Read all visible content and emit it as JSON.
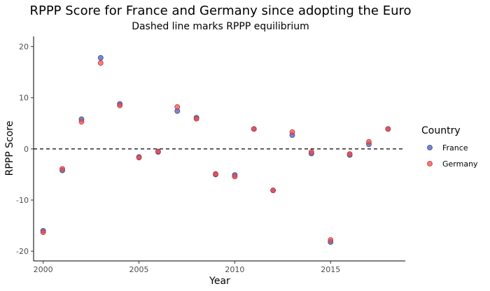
{
  "chart_data": {
    "type": "scatter",
    "title": "RPPP Score for France and Germany since adopting the Euro",
    "subtitle": "Dashed line marks RPPP equilibrium",
    "xlabel": "Year",
    "ylabel": "RPPP Score",
    "xlim": [
      1999.5,
      2018.9
    ],
    "ylim": [
      -21.9,
      22.0
    ],
    "x_ticks": [
      2000,
      2005,
      2010,
      2015
    ],
    "y_ticks": [
      -20,
      -10,
      0,
      10,
      20
    ],
    "reference_line": {
      "y": 0,
      "style": "dashed"
    },
    "grid": false,
    "legend": {
      "title": "Country",
      "position": "right"
    },
    "x": [
      2000,
      2001,
      2002,
      2003,
      2004,
      2005,
      2006,
      2007,
      2008,
      2009,
      2010,
      2011,
      2012,
      2013,
      2014,
      2015,
      2016,
      2017,
      2018
    ],
    "series": [
      {
        "name": "France",
        "color": "#4a5bb5",
        "values": [
          -16.0,
          -4.2,
          5.8,
          17.8,
          8.8,
          -1.6,
          -0.6,
          7.4,
          6.1,
          -5.0,
          -5.1,
          3.9,
          -8.1,
          2.7,
          -0.9,
          -18.2,
          -1.2,
          0.9,
          3.9
        ]
      },
      {
        "name": "Germany",
        "color": "#f04a4a",
        "values": [
          -16.3,
          -3.9,
          5.3,
          16.8,
          8.5,
          -1.7,
          -0.5,
          8.2,
          5.9,
          -4.9,
          -5.4,
          3.9,
          -8.1,
          3.3,
          -0.6,
          -17.8,
          -1.0,
          1.4,
          3.9
        ]
      }
    ]
  }
}
